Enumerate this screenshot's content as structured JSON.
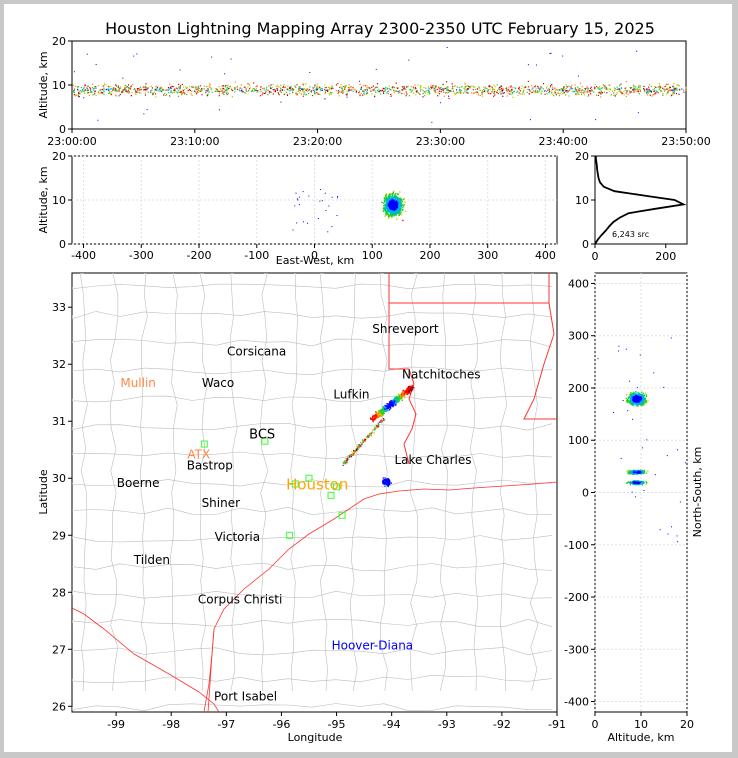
{
  "title": "Houston Lightning Mapping Array 2300-2350 UTC February 15, 2025",
  "colors": {
    "frame_bg": "#c8c8c8",
    "panel_bg": "#ffffff",
    "state_lines": "#ff0000",
    "county_lines": "#bdbdbd",
    "coast": "#ff3333",
    "station": "#33ff33",
    "histogram": "#000000"
  },
  "chart_data": [
    {
      "type": "scatter",
      "panel": "altitude-time",
      "ylabel": "Altitude, km",
      "ylim": [
        0,
        20
      ],
      "yticks": [
        "0",
        "10",
        "20"
      ],
      "xlim": [
        "23:00:00",
        "23:50:00"
      ],
      "xticks": [
        "23:00:00",
        "23:10:00",
        "23:20:00",
        "23:30:00",
        "23:40:00",
        "23:50:00"
      ],
      "altitude_band_km": [
        6,
        12
      ],
      "peak_altitude_km": 9
    },
    {
      "type": "scatter",
      "panel": "altitude-eastwest",
      "xlabel": "East-West, km",
      "ylabel": "Altitude, km",
      "xlim": [
        -420,
        420
      ],
      "ylim": [
        0,
        20
      ],
      "xticks": [
        "-400",
        "-300",
        "-200",
        "-100",
        "0",
        "100",
        "200",
        "300",
        "400"
      ],
      "yticks": [
        "0",
        "10",
        "20"
      ],
      "cluster_center_km": [
        135,
        9
      ]
    },
    {
      "type": "line",
      "panel": "altitude-histogram",
      "xlim": [
        0,
        260
      ],
      "ylim": [
        0,
        20
      ],
      "xticks": [
        "0",
        "200"
      ],
      "yticks": [
        "0",
        "10",
        "20"
      ],
      "annotation": "6,243 src",
      "altitude_km": [
        0,
        1,
        2,
        3,
        4,
        5,
        6,
        7,
        8,
        9,
        10,
        11,
        12,
        13,
        14,
        15,
        16,
        17,
        18,
        19,
        20
      ],
      "source_counts": [
        0,
        8,
        18,
        30,
        40,
        52,
        70,
        95,
        170,
        250,
        225,
        140,
        55,
        25,
        14,
        10,
        8,
        6,
        5,
        3,
        2
      ]
    },
    {
      "type": "scatter",
      "panel": "map",
      "xlabel": "Longitude",
      "ylabel": "Latitude",
      "xlim": [
        -99.8,
        -91
      ],
      "ylim": [
        25.9,
        33.6
      ],
      "xticks": [
        "-99",
        "-98",
        "-97",
        "-96",
        "-95",
        "-94",
        "-93",
        "-92",
        "-91"
      ],
      "yticks": [
        "26",
        "27",
        "28",
        "29",
        "30",
        "31",
        "32",
        "33"
      ],
      "main_cluster": {
        "lon": -94.0,
        "lat": 31.3
      },
      "cities": [
        {
          "name": "Shreveport",
          "lon": -93.75,
          "lat": 32.55,
          "color": "#000000"
        },
        {
          "name": "Corsicana",
          "lon": -96.45,
          "lat": 32.15,
          "color": "#000000"
        },
        {
          "name": "Natchitoches",
          "lon": -93.1,
          "lat": 31.75,
          "color": "#000000"
        },
        {
          "name": "Mullin",
          "lon": -98.6,
          "lat": 31.6,
          "color": "#ff8844"
        },
        {
          "name": "Waco",
          "lon": -97.15,
          "lat": 31.6,
          "color": "#000000"
        },
        {
          "name": "Lufkin",
          "lon": -94.73,
          "lat": 31.4,
          "color": "#000000"
        },
        {
          "name": "BCS",
          "lon": -96.35,
          "lat": 30.7,
          "color": "#000000"
        },
        {
          "name": "ATX",
          "lon": -97.5,
          "lat": 30.35,
          "color": "#ff8844"
        },
        {
          "name": "Bastrop",
          "lon": -97.3,
          "lat": 30.15,
          "color": "#000000"
        },
        {
          "name": "Lake Charles",
          "lon": -93.25,
          "lat": 30.25,
          "color": "#000000"
        },
        {
          "name": "Houston",
          "lon": -95.35,
          "lat": 29.8,
          "color": "#ffa500"
        },
        {
          "name": "Boerne",
          "lon": -98.6,
          "lat": 29.85,
          "color": "#000000"
        },
        {
          "name": "Shiner",
          "lon": -97.1,
          "lat": 29.5,
          "color": "#000000"
        },
        {
          "name": "Victoria",
          "lon": -96.8,
          "lat": 28.9,
          "color": "#000000"
        },
        {
          "name": "Tilden",
          "lon": -98.35,
          "lat": 28.5,
          "color": "#000000"
        },
        {
          "name": "Corpus Christi",
          "lon": -96.75,
          "lat": 27.8,
          "color": "#000000"
        },
        {
          "name": "Hoover-Diana",
          "lon": -94.35,
          "lat": 27.0,
          "color": "#0000ff"
        },
        {
          "name": "Port Isabel",
          "lon": -96.65,
          "lat": 26.1,
          "color": "#000000"
        }
      ]
    },
    {
      "type": "scatter",
      "panel": "northsouth-altitude",
      "xlabel": "Altitude, km",
      "ylabel": "North-South, km",
      "xlim": [
        0,
        20
      ],
      "ylim": [
        -420,
        420
      ],
      "xticks": [
        "0",
        "10",
        "20"
      ],
      "yticks": [
        "400",
        "300",
        "200",
        "100",
        "0",
        "-100",
        "-200",
        "-300",
        "-400"
      ],
      "clusters_km": [
        [
          9,
          180
        ],
        [
          9,
          40
        ],
        [
          9,
          20
        ]
      ]
    }
  ]
}
